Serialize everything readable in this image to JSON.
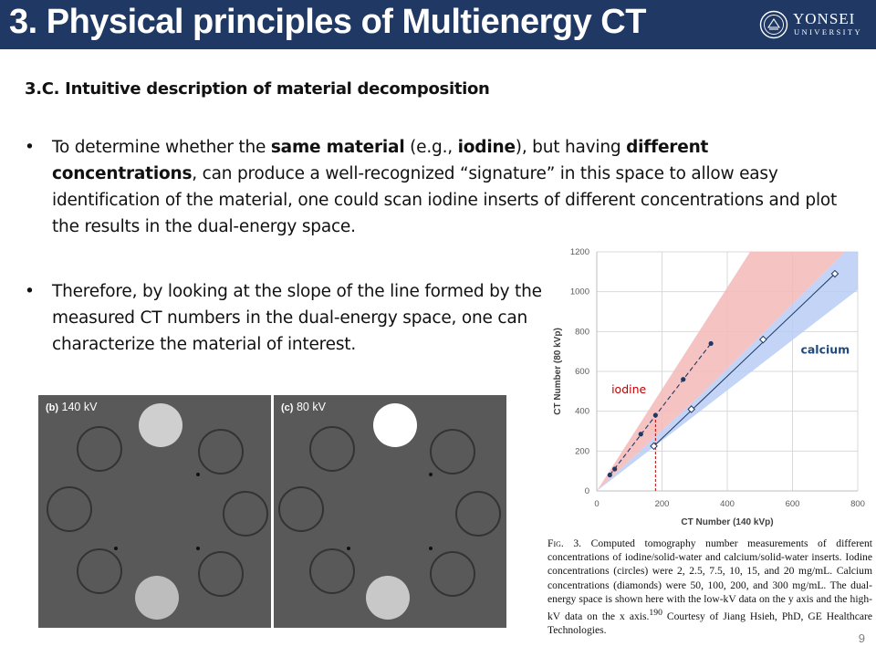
{
  "header": {
    "title": "3. Physical principles of Multienergy CT",
    "logo": {
      "name": "YONSEI",
      "sub": "UNIVERSITY"
    }
  },
  "section": {
    "heading": "3.C. Intuitive description of material decomposition"
  },
  "bullets": [
    {
      "parts": [
        "To determine whether the ",
        "same material",
        " (e.g., ",
        "iodine",
        "), but having ",
        "different concentrations",
        ", can produce a well-recognized “signature” in this space to allow easy identification of the material, one could scan iodine inserts of different concentrations and plot the results in the dual-energy space."
      ]
    },
    {
      "text": "Therefore, by looking at the slope of the line formed by the measured CT numbers in the dual-energy space, one can characterize the material of interest."
    }
  ],
  "phantoms": [
    {
      "tag": "(b)",
      "label": "140 kV"
    },
    {
      "tag": "(c)",
      "label": "80 kV"
    }
  ],
  "chart_data": {
    "type": "scatter",
    "xlabel": "CT Number (140 kVp)",
    "ylabel": "CT Number (80 kVp)",
    "xlim": [
      0,
      800
    ],
    "ylim": [
      0,
      1200
    ],
    "xticks": [
      0,
      200,
      400,
      600,
      800
    ],
    "yticks": [
      0,
      200,
      400,
      600,
      800,
      1000,
      1200
    ],
    "grid": true,
    "series": [
      {
        "name": "iodine",
        "marker": "circle",
        "color": "#c00000",
        "x": [
          40,
          55,
          135,
          180,
          265,
          350
        ],
        "y": [
          80,
          110,
          285,
          380,
          560,
          740
        ]
      },
      {
        "name": "calcium",
        "marker": "diamond",
        "color": "#1f497d",
        "x": [
          175,
          290,
          510,
          730
        ],
        "y": [
          225,
          410,
          760,
          1090
        ]
      }
    ],
    "bands": [
      {
        "name": "iodine",
        "color": "#f4b8b8"
      },
      {
        "name": "calcium",
        "color": "#b8cdf4"
      }
    ],
    "annotations": [
      "iodine",
      "calcium"
    ]
  },
  "caption": {
    "fig": "Fig. 3.",
    "text": " Computed tomography number measurements of different concentrations of iodine/solid-water and calcium/solid-water inserts. Iodine concentrations (circles) were 2, 2.5, 7.5, 10, 15, and 20 mg/mL. Calcium concentrations (diamonds) were 50, 100, 200, and 300 mg/mL. The dual-energy space is shown here with the low-kV data on the y axis and the high-kV data on the x axis.",
    "ref": "190",
    "credit": " Courtesy of Jiang Hsieh, PhD, GE Healthcare Technologies."
  },
  "page": {
    "number": "9"
  }
}
